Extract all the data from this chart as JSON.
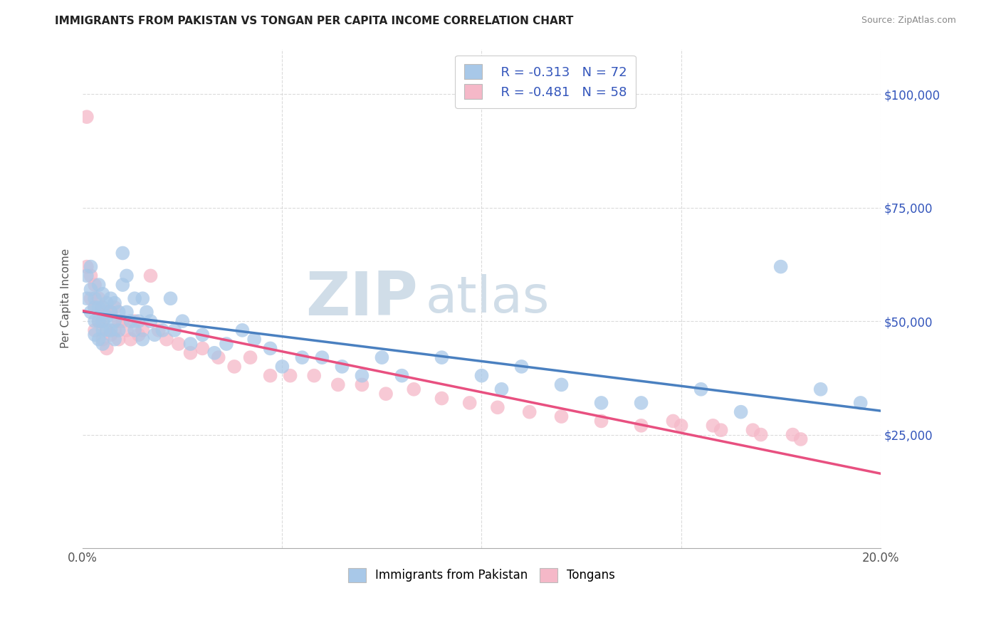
{
  "title": "IMMIGRANTS FROM PAKISTAN VS TONGAN PER CAPITA INCOME CORRELATION CHART",
  "source": "Source: ZipAtlas.com",
  "ylabel": "Per Capita Income",
  "xlim": [
    0.0,
    0.2
  ],
  "ylim": [
    0,
    110000
  ],
  "yticks": [
    0,
    25000,
    50000,
    75000,
    100000
  ],
  "ytick_labels": [
    "",
    "$25,000",
    "$50,000",
    "$75,000",
    "$100,000"
  ],
  "xticks": [
    0.0,
    0.05,
    0.1,
    0.15,
    0.2
  ],
  "xtick_labels": [
    "0.0%",
    "",
    "",
    "",
    "20.0%"
  ],
  "legend_label1": "Immigrants from Pakistan",
  "legend_label2": "Tongans",
  "blue_color": "#a8c8e8",
  "pink_color": "#f5b8c8",
  "blue_line_color": "#4a80c0",
  "pink_line_color": "#e85080",
  "legend_text_color": "#3355bb",
  "watermark_color": "#d0dde8",
  "background_color": "#ffffff",
  "grid_color": "#cccccc",
  "title_color": "#222222",
  "source_color": "#888888",
  "pakistan_x": [
    0.001,
    0.001,
    0.002,
    0.002,
    0.002,
    0.003,
    0.003,
    0.003,
    0.003,
    0.004,
    0.004,
    0.004,
    0.004,
    0.005,
    0.005,
    0.005,
    0.005,
    0.005,
    0.006,
    0.006,
    0.006,
    0.007,
    0.007,
    0.007,
    0.008,
    0.008,
    0.008,
    0.009,
    0.009,
    0.01,
    0.01,
    0.011,
    0.011,
    0.012,
    0.013,
    0.013,
    0.014,
    0.015,
    0.015,
    0.016,
    0.017,
    0.018,
    0.02,
    0.022,
    0.023,
    0.025,
    0.027,
    0.03,
    0.033,
    0.036,
    0.04,
    0.043,
    0.047,
    0.05,
    0.055,
    0.06,
    0.065,
    0.07,
    0.075,
    0.08,
    0.09,
    0.1,
    0.105,
    0.11,
    0.12,
    0.13,
    0.14,
    0.155,
    0.165,
    0.175,
    0.185,
    0.195
  ],
  "pakistan_y": [
    60000,
    55000,
    62000,
    57000,
    52000,
    55000,
    53000,
    50000,
    47000,
    58000,
    53000,
    50000,
    46000,
    56000,
    53000,
    50000,
    48000,
    45000,
    54000,
    51000,
    48000,
    55000,
    52000,
    48000,
    54000,
    50000,
    46000,
    52000,
    48000,
    65000,
    58000,
    60000,
    52000,
    50000,
    55000,
    48000,
    50000,
    55000,
    46000,
    52000,
    50000,
    47000,
    48000,
    55000,
    48000,
    50000,
    45000,
    47000,
    43000,
    45000,
    48000,
    46000,
    44000,
    40000,
    42000,
    42000,
    40000,
    38000,
    42000,
    38000,
    42000,
    38000,
    35000,
    40000,
    36000,
    32000,
    32000,
    35000,
    30000,
    62000,
    35000,
    32000
  ],
  "tongan_x": [
    0.001,
    0.001,
    0.002,
    0.002,
    0.003,
    0.003,
    0.003,
    0.004,
    0.004,
    0.005,
    0.005,
    0.005,
    0.006,
    0.006,
    0.006,
    0.007,
    0.007,
    0.008,
    0.008,
    0.009,
    0.009,
    0.01,
    0.011,
    0.012,
    0.013,
    0.014,
    0.015,
    0.017,
    0.019,
    0.021,
    0.024,
    0.027,
    0.03,
    0.034,
    0.038,
    0.042,
    0.047,
    0.052,
    0.058,
    0.064,
    0.07,
    0.076,
    0.083,
    0.09,
    0.097,
    0.104,
    0.112,
    0.12,
    0.13,
    0.14,
    0.15,
    0.16,
    0.17,
    0.18,
    0.148,
    0.158,
    0.168,
    0.178
  ],
  "tongan_y": [
    95000,
    62000,
    60000,
    55000,
    58000,
    53000,
    48000,
    55000,
    50000,
    53000,
    50000,
    46000,
    52000,
    48000,
    44000,
    52000,
    47000,
    53000,
    48000,
    50000,
    46000,
    50000,
    48000,
    46000,
    50000,
    47000,
    48000,
    60000,
    48000,
    46000,
    45000,
    43000,
    44000,
    42000,
    40000,
    42000,
    38000,
    38000,
    38000,
    36000,
    36000,
    34000,
    35000,
    33000,
    32000,
    31000,
    30000,
    29000,
    28000,
    27000,
    27000,
    26000,
    25000,
    24000,
    28000,
    27000,
    26000,
    25000
  ]
}
